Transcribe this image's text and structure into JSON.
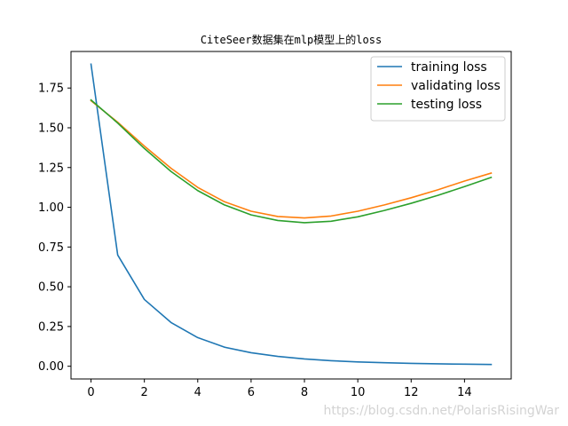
{
  "chart_data": {
    "type": "line",
    "title": "CiteSeer数据集在mlp模型上的loss",
    "xlabel": "",
    "ylabel": "",
    "xlim": [
      -0.75,
      15.75
    ],
    "ylim": [
      -0.08,
      1.98
    ],
    "x_ticks": [
      0,
      2,
      4,
      6,
      8,
      10,
      12,
      14
    ],
    "y_ticks": [
      0.0,
      0.25,
      0.5,
      0.75,
      1.0,
      1.25,
      1.5,
      1.75
    ],
    "x_tick_labels": [
      "0",
      "2",
      "4",
      "6",
      "8",
      "10",
      "12",
      "14"
    ],
    "y_tick_labels": [
      "0.00",
      "0.25",
      "0.50",
      "0.75",
      "1.00",
      "1.25",
      "1.50",
      "1.75"
    ],
    "grid": false,
    "legend_position": "top-right",
    "x": [
      0,
      1,
      2,
      3,
      4,
      5,
      6,
      7,
      8,
      9,
      10,
      11,
      12,
      13,
      14,
      15
    ],
    "series": [
      {
        "name": "training loss",
        "color": "#1f77b4",
        "values": [
          1.9,
          0.7,
          0.42,
          0.275,
          0.18,
          0.12,
          0.085,
          0.062,
          0.046,
          0.035,
          0.027,
          0.022,
          0.018,
          0.015,
          0.013,
          0.011
        ]
      },
      {
        "name": "validating loss",
        "color": "#ff7f0e",
        "values": [
          1.67,
          1.535,
          1.385,
          1.245,
          1.125,
          1.035,
          0.975,
          0.942,
          0.933,
          0.945,
          0.975,
          1.015,
          1.06,
          1.11,
          1.165,
          1.215
        ]
      },
      {
        "name": "testing loss",
        "color": "#2ca02c",
        "values": [
          1.675,
          1.53,
          1.37,
          1.225,
          1.105,
          1.015,
          0.952,
          0.917,
          0.903,
          0.912,
          0.94,
          0.98,
          1.025,
          1.075,
          1.13,
          1.188
        ]
      }
    ]
  },
  "watermark": "https://blog.csdn.net/PolarisRisingWar"
}
